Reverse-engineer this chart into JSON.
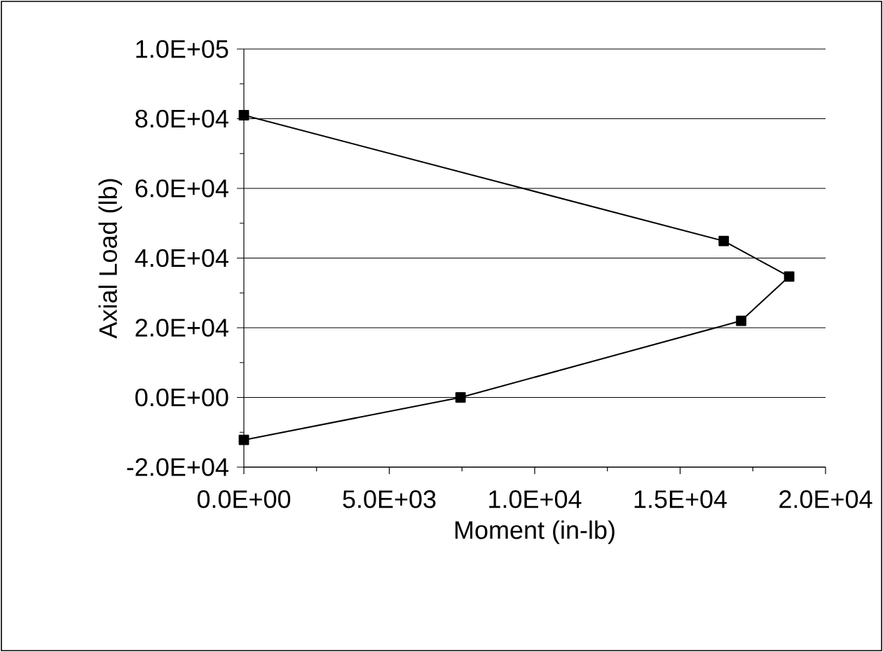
{
  "chart_data": {
    "type": "line",
    "xlabel": "Moment (in-lb)",
    "ylabel": "Axial Load (lb)",
    "xlim": [
      0,
      20000
    ],
    "ylim": [
      -20000,
      100000
    ],
    "xticks": [
      {
        "value": 0,
        "label": "0.0E+00"
      },
      {
        "value": 5000,
        "label": "5.0E+03"
      },
      {
        "value": 10000,
        "label": "1.0E+04"
      },
      {
        "value": 15000,
        "label": "1.5E+04"
      },
      {
        "value": 20000,
        "label": "2.0E+04"
      }
    ],
    "yticks": [
      {
        "value": -20000,
        "label": "-2.0E+04"
      },
      {
        "value": 0,
        "label": "0.0E+00"
      },
      {
        "value": 20000,
        "label": "2.0E+04"
      },
      {
        "value": 40000,
        "label": "4.0E+04"
      },
      {
        "value": 60000,
        "label": "6.0E+04"
      },
      {
        "value": 80000,
        "label": "8.0E+04"
      },
      {
        "value": 100000,
        "label": "1.0E+05"
      }
    ],
    "grid": "y",
    "marker": "square",
    "line_style": "solid",
    "series": [
      {
        "color": "#000000",
        "x": [
          0,
          16500,
          18750,
          17100,
          7450,
          0
        ],
        "values": [
          81000,
          44900,
          34700,
          22000,
          0,
          -12200
        ]
      }
    ]
  }
}
